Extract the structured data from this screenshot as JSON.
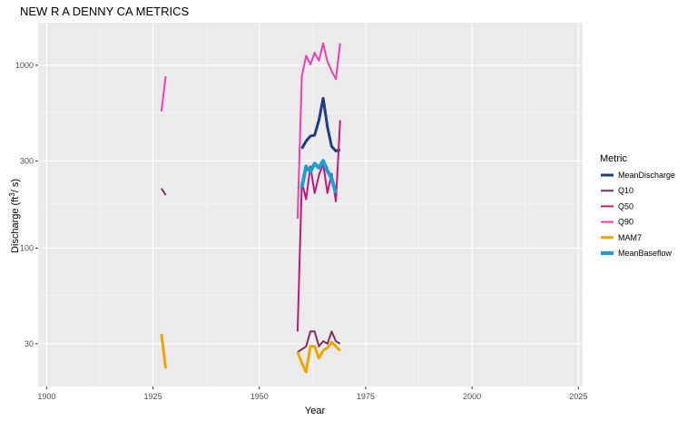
{
  "chart_data": {
    "type": "line",
    "title": "NEW R A DENNY CA  METRICS",
    "xlabel": "Year",
    "ylabel_prefix": "Discharge (ft",
    "ylabel_sup": "3",
    "ylabel_suffix": "/ s)",
    "xlim": [
      1898,
      2026
    ],
    "ylim": [
      17.5,
      1710
    ],
    "y_scale": "log10",
    "x_ticks": [
      1900,
      1925,
      1950,
      1975,
      2000,
      2025
    ],
    "x_minor_ticks": [
      1912.5,
      1937.5,
      1962.5,
      1987.5,
      2012.5
    ],
    "y_ticks": [
      30,
      100,
      300,
      1000
    ],
    "y_minor_ticks": [
      55,
      175,
      550
    ],
    "grid": true,
    "legend_title": "Metric",
    "legend_position": "right",
    "series": [
      {
        "name": "MeanDischarge",
        "color": "#1f3a8a",
        "width": 3,
        "segments": [
          [
            [
              1960,
              350
            ],
            [
              1961,
              385
            ],
            [
              1962,
              410
            ],
            [
              1963,
              415
            ],
            [
              1964,
              500
            ],
            [
              1965,
              660
            ],
            [
              1966,
              460
            ],
            [
              1967,
              360
            ],
            [
              1968,
              340
            ],
            [
              1969,
              345
            ]
          ]
        ]
      },
      {
        "name": "Q10",
        "color": "#8a2b5a",
        "width": 2,
        "segments": [
          [
            [
              1927,
              212
            ],
            [
              1928,
              195
            ]
          ],
          [
            [
              1959,
              27
            ],
            [
              1960,
              28
            ],
            [
              1961,
              29
            ],
            [
              1962,
              35
            ],
            [
              1963,
              35
            ],
            [
              1964,
              29
            ],
            [
              1965,
              31
            ],
            [
              1966,
              30
            ],
            [
              1967,
              35
            ],
            [
              1968,
              31
            ],
            [
              1969,
              30
            ]
          ]
        ]
      },
      {
        "name": "Q50",
        "color": "#c2187a",
        "width": 2,
        "segments": [
          [
            [
              1959,
              35
            ],
            [
              1960,
              230
            ],
            [
              1961,
              185
            ],
            [
              1962,
              280
            ],
            [
              1963,
              200
            ],
            [
              1964,
              250
            ],
            [
              1965,
              290
            ],
            [
              1966,
              200
            ],
            [
              1967,
              255
            ],
            [
              1968,
              180
            ],
            [
              1969,
              500
            ]
          ]
        ]
      },
      {
        "name": "Q90",
        "color": "#f03fb0",
        "width": 2,
        "segments": [
          [
            [
              1927,
              560
            ],
            [
              1928,
              870
            ]
          ],
          [
            [
              1959,
              145
            ],
            [
              1960,
              870
            ],
            [
              1961,
              1130
            ],
            [
              1962,
              1010
            ],
            [
              1963,
              1170
            ],
            [
              1964,
              1060
            ],
            [
              1965,
              1320
            ],
            [
              1966,
              1050
            ],
            [
              1967,
              930
            ],
            [
              1968,
              840
            ],
            [
              1969,
              1320
            ]
          ]
        ]
      },
      {
        "name": "MAM7",
        "color": "#f0a500",
        "width": 3,
        "segments": [
          [
            [
              1927,
              34
            ],
            [
              1928,
              22
            ]
          ],
          [
            [
              1959,
              27
            ],
            [
              1960,
              23.5
            ],
            [
              1961,
              21
            ],
            [
              1962,
              29
            ],
            [
              1963,
              29
            ],
            [
              1964,
              25
            ],
            [
              1965,
              27.5
            ],
            [
              1966,
              28.5
            ],
            [
              1967,
              30.5
            ],
            [
              1968,
              29
            ],
            [
              1969,
              27.5
            ]
          ]
        ]
      },
      {
        "name": "MeanBaseflow",
        "color": "#1a9fd4",
        "width": 4,
        "segments": [
          [
            [
              1960,
              215
            ],
            [
              1961,
              280
            ],
            [
              1962,
              262
            ],
            [
              1963,
              290
            ],
            [
              1964,
              275
            ],
            [
              1965,
              300
            ],
            [
              1966,
              265
            ],
            [
              1967,
              240
            ],
            [
              1968,
              200
            ]
          ]
        ]
      }
    ]
  }
}
